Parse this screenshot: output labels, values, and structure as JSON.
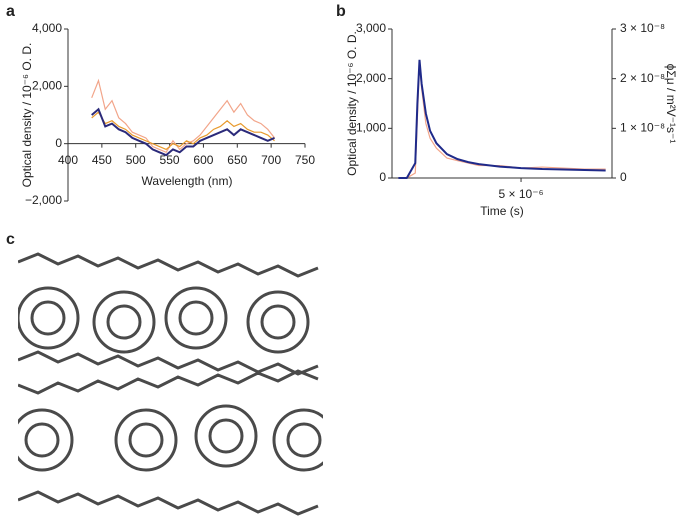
{
  "chart_data": [
    {
      "type": "line",
      "label": "a",
      "xlabel": "Wavelength (nm)",
      "ylabel": "Optical density / 10⁻⁶ O. D.",
      "x": [
        435,
        445,
        455,
        465,
        475,
        485,
        495,
        505,
        515,
        525,
        535,
        545,
        555,
        565,
        575,
        585,
        595,
        605,
        615,
        625,
        635,
        645,
        655,
        665,
        675,
        685,
        695,
        705
      ],
      "series": [
        {
          "color": "#f2a58a",
          "values": [
            1600,
            2200,
            1200,
            1500,
            900,
            700,
            400,
            300,
            200,
            -100,
            -200,
            -300,
            100,
            -200,
            0,
            100,
            300,
            600,
            900,
            1200,
            1500,
            1100,
            1400,
            1000,
            800,
            700,
            500,
            200
          ]
        },
        {
          "color": "#e89a2c",
          "values": [
            900,
            1100,
            700,
            800,
            600,
            500,
            300,
            200,
            100,
            0,
            -100,
            -200,
            0,
            -100,
            100,
            0,
            200,
            300,
            500,
            600,
            800,
            600,
            700,
            500,
            400,
            400,
            300,
            100
          ]
        },
        {
          "color": "#2b2a7a",
          "values": [
            1000,
            1200,
            600,
            700,
            500,
            400,
            200,
            100,
            0,
            -200,
            -300,
            -400,
            -200,
            -300,
            -100,
            -100,
            100,
            200,
            300,
            400,
            500,
            300,
            500,
            400,
            300,
            200,
            100,
            200
          ]
        }
      ],
      "xlim": [
        400,
        750
      ],
      "xticks": [
        400,
        450,
        500,
        550,
        600,
        650,
        700,
        750
      ],
      "ylim": [
        -2000,
        4000
      ],
      "yticks": [
        {
          "value": -2000,
          "label": "−2,000"
        },
        0,
        {
          "value": 2000,
          "label": "2,000"
        },
        {
          "value": 4000,
          "label": "4,000"
        }
      ]
    },
    {
      "type": "line",
      "label": "b",
      "xlabel": "Time (s)",
      "ylabel": "Optical density / 10⁻⁶ O. D.",
      "y2label": "ϕΣμ / m²V⁻¹s⁻¹",
      "x": [
        -8e-07,
        -4e-07,
        0,
        1e-07,
        2e-07,
        3e-07,
        5e-07,
        7e-07,
        1e-06,
        1.5e-06,
        2e-06,
        2.5e-06,
        3e-06,
        4e-06,
        5e-06,
        6e-06,
        7e-06,
        8e-06,
        9e-06
      ],
      "series": [
        {
          "color": "#f2a58a",
          "axis": "y2",
          "values": [
            0,
            0,
            1e-09,
            1.2e-08,
            2.3e-08,
            1.8e-08,
            1.1e-08,
            8e-09,
            6e-09,
            4e-09,
            3.5e-09,
            3e-09,
            2.5e-09,
            2.5e-09,
            2e-09,
            2.2e-09,
            2e-09,
            1.8e-09,
            1.8e-09
          ]
        },
        {
          "color": "#1f2a8a",
          "values": [
            0,
            0,
            300,
            1500,
            2380,
            1900,
            1300,
            950,
            700,
            480,
            380,
            320,
            280,
            230,
            200,
            180,
            170,
            160,
            150
          ]
        }
      ],
      "xlim": [
        -1.1e-06,
        9.3e-06
      ],
      "xticks": [
        {
          "value": 5e-06,
          "label": "5 × 10⁻⁶"
        }
      ],
      "ylim": [
        0,
        3000
      ],
      "yticks": [
        0,
        {
          "value": 1000,
          "label": "1,000"
        },
        {
          "value": 2000,
          "label": "2,000"
        },
        {
          "value": 3000,
          "label": "3,000"
        }
      ],
      "y2lim": [
        0,
        3e-08
      ],
      "y2ticks": [
        0,
        {
          "value": 1e-08,
          "label": "1 × 10⁻⁸"
        },
        {
          "value": 2e-08,
          "label": "2 × 10⁻⁸"
        },
        {
          "value": 3e-08,
          "label": "3 × 10⁻⁸"
        }
      ]
    }
  ],
  "figure_c": {
    "label": "c"
  }
}
